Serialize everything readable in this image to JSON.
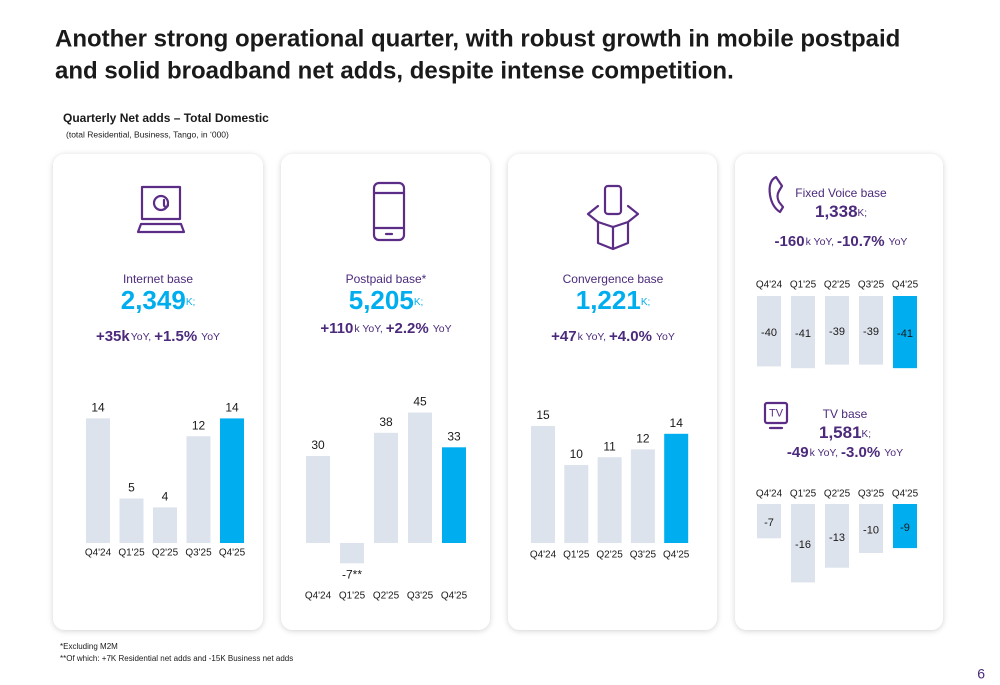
{
  "title_lines": [
    "Another strong operational quarter, with robust growth in mobile postpaid",
    "and solid broadband net adds, despite intense competition."
  ],
  "section_title": "Quarterly Net adds – Total Domestic",
  "section_subtitle": "(total Residential, Business, Tango, in ‘000)",
  "footnotes": [
    "*Excluding M2M",
    "**Of which: +7K Residential net adds and -15K Business net adds"
  ],
  "page_number": "6",
  "chart_data": [
    {
      "type": "bar",
      "name": "Internet base",
      "base_value": "2,349",
      "base_unit": "K;",
      "delta": "+35k",
      "delta_unit": "YoY,",
      "pct": "+1.5%",
      "pct_unit": "YoY",
      "categories": [
        "Q4'24",
        "Q1'25",
        "Q2'25",
        "Q3'25",
        "Q4'25"
      ],
      "values": [
        14,
        5,
        4,
        12,
        14
      ],
      "colors": [
        "#dde3ec",
        "#dde3ec",
        "#dde3ec",
        "#dde3ec",
        "#00aeef"
      ]
    },
    {
      "type": "bar",
      "name": "Postpaid base*",
      "base_value": "5,205",
      "base_unit": "K;",
      "delta": "+110",
      "delta_unit": "k YoY,",
      "pct": "+2.2%",
      "pct_unit": "YoY",
      "categories": [
        "Q4'24",
        "Q1'25",
        "Q2'25",
        "Q3'25",
        "Q4'25"
      ],
      "values": [
        30,
        -7,
        38,
        45,
        33
      ],
      "value_labels": [
        "30",
        "-7**",
        "38",
        "45",
        "33"
      ],
      "colors": [
        "#dde3ec",
        "#dde3ec",
        "#dde3ec",
        "#dde3ec",
        "#00aeef"
      ]
    },
    {
      "type": "bar",
      "name": "Convergence base",
      "base_value": "1,221",
      "base_unit": "K;",
      "delta": "+47",
      "delta_unit": "k YoY,",
      "pct": "+4.0%",
      "pct_unit": "YoY",
      "categories": [
        "Q4'24",
        "Q1'25",
        "Q2'25",
        "Q3'25",
        "Q4'25"
      ],
      "values": [
        15,
        10,
        11,
        12,
        14
      ],
      "colors": [
        "#dde3ec",
        "#dde3ec",
        "#dde3ec",
        "#dde3ec",
        "#00aeef"
      ]
    },
    {
      "type": "bar",
      "name": "Fixed Voice base",
      "base_value": "1,338",
      "base_unit": "K;",
      "delta": "-160",
      "delta_unit": "k YoY,",
      "pct": "-10.7%",
      "pct_unit": "YoY",
      "categories": [
        "Q4'24",
        "Q1'25",
        "Q2'25",
        "Q3'25",
        "Q4'25"
      ],
      "values": [
        -40,
        -41,
        -39,
        -39,
        -41
      ],
      "colors": [
        "#dde3ec",
        "#dde3ec",
        "#dde3ec",
        "#dde3ec",
        "#00aeef"
      ]
    },
    {
      "type": "bar",
      "name": "TV base",
      "base_value": "1,581",
      "base_unit": "K;",
      "delta": "-49",
      "delta_unit": "k YoY,",
      "pct": "-3.0%",
      "pct_unit": "YoY",
      "categories": [
        "Q4'24",
        "Q1'25",
        "Q2'25",
        "Q3'25",
        "Q4'25"
      ],
      "values": [
        -7,
        -16,
        -13,
        -10,
        -9
      ],
      "colors": [
        "#dde3ec",
        "#dde3ec",
        "#dde3ec",
        "#dde3ec",
        "#00aeef"
      ]
    }
  ]
}
